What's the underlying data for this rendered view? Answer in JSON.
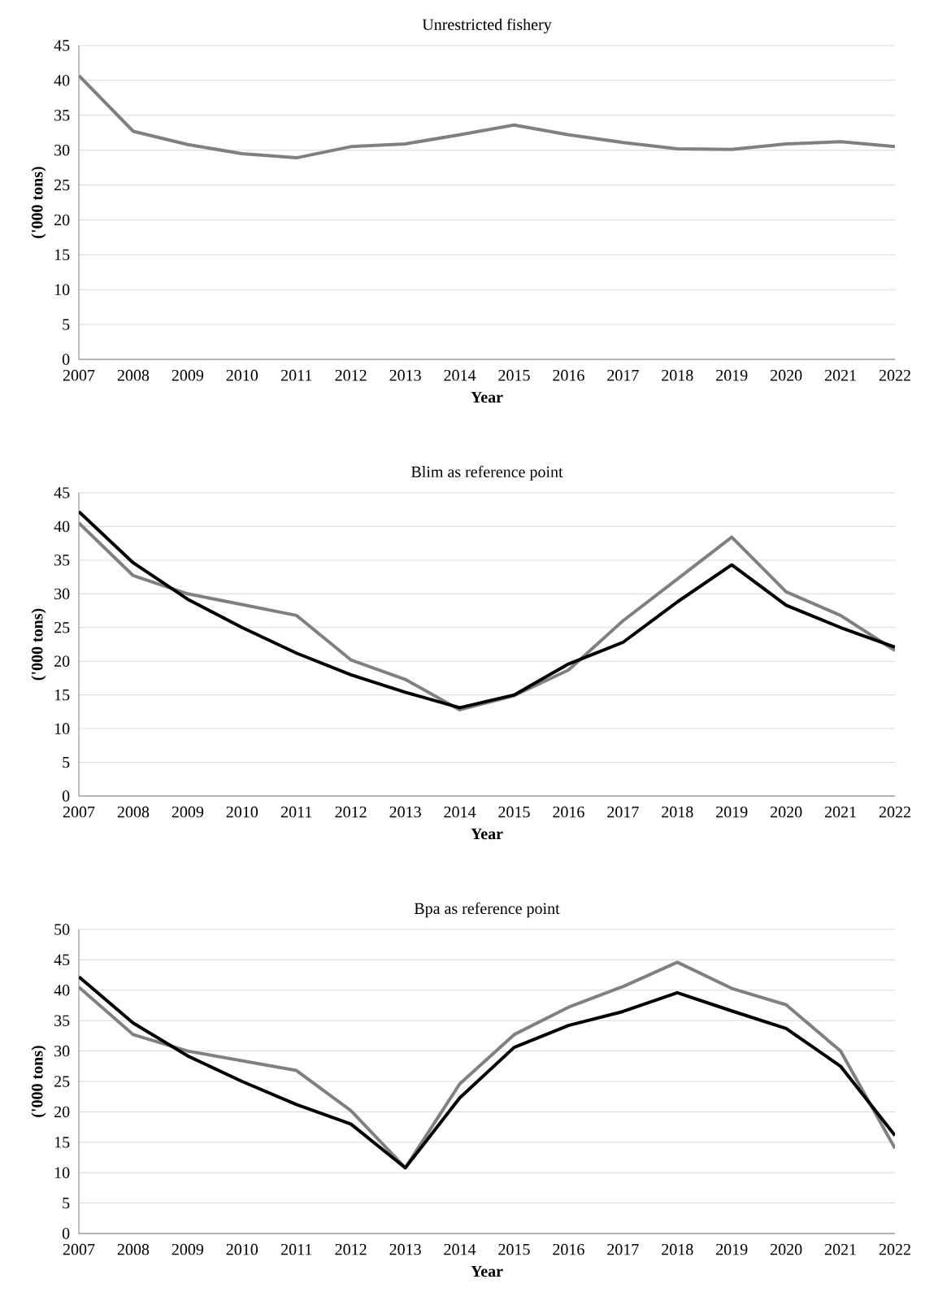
{
  "chart_data": [
    {
      "type": "line",
      "title": "Unrestricted fishery",
      "xlabel": "Year",
      "ylabel": "('000 tons)",
      "categories": [
        "2007",
        "2008",
        "2009",
        "2010",
        "2011",
        "2012",
        "2013",
        "2014",
        "2015",
        "2016",
        "2017",
        "2018",
        "2019",
        "2020",
        "2021",
        "2022"
      ],
      "ylim": [
        0,
        45
      ],
      "yticks": [
        0,
        5,
        10,
        15,
        20,
        25,
        30,
        35,
        40,
        45
      ],
      "grid": "y",
      "series": [
        {
          "color": "#808080",
          "values": [
            40.7,
            32.7,
            30.8,
            29.5,
            28.9,
            30.5,
            30.9,
            32.2,
            33.6,
            32.2,
            31.1,
            30.2,
            30.1,
            30.9,
            31.2,
            30.5
          ]
        }
      ]
    },
    {
      "type": "line",
      "title": "Blim as reference point",
      "xlabel": "Year",
      "ylabel": "('000 tons)",
      "categories": [
        "2007",
        "2008",
        "2009",
        "2010",
        "2011",
        "2012",
        "2013",
        "2014",
        "2015",
        "2016",
        "2017",
        "2018",
        "2019",
        "2020",
        "2021",
        "2022"
      ],
      "ylim": [
        0,
        45
      ],
      "yticks": [
        0,
        5,
        10,
        15,
        20,
        25,
        30,
        35,
        40,
        45
      ],
      "grid": "y",
      "series": [
        {
          "color": "#808080",
          "values": [
            40.5,
            32.7,
            30.0,
            28.4,
            26.8,
            20.2,
            17.3,
            12.8,
            14.9,
            18.7,
            26.0,
            32.2,
            38.4,
            30.3,
            26.8,
            21.6
          ]
        },
        {
          "color": "#000000",
          "values": [
            42.2,
            34.6,
            29.2,
            25.0,
            21.2,
            18.0,
            15.4,
            13.1,
            15.0,
            19.6,
            22.8,
            28.8,
            34.3,
            28.3,
            25.0,
            22.1
          ]
        }
      ]
    },
    {
      "type": "line",
      "title": "Bpa as reference point",
      "xlabel": "Year",
      "ylabel": "('000 tons)",
      "categories": [
        "2007",
        "2008",
        "2009",
        "2010",
        "2011",
        "2012",
        "2013",
        "2014",
        "2015",
        "2016",
        "2017",
        "2018",
        "2019",
        "2020",
        "2021",
        "2022"
      ],
      "ylim": [
        0,
        50
      ],
      "yticks": [
        0,
        5,
        10,
        15,
        20,
        25,
        30,
        35,
        40,
        45,
        50
      ],
      "grid": "y",
      "series": [
        {
          "color": "#808080",
          "values": [
            40.5,
            32.7,
            30.0,
            28.4,
            26.8,
            20.2,
            10.8,
            24.6,
            32.7,
            37.2,
            40.6,
            44.6,
            40.3,
            37.6,
            30.0,
            14.0
          ]
        },
        {
          "color": "#000000",
          "values": [
            42.2,
            34.6,
            29.2,
            25.0,
            21.2,
            18.0,
            10.8,
            22.3,
            30.6,
            34.2,
            36.5,
            39.6,
            36.6,
            33.7,
            27.5,
            16.1
          ]
        }
      ]
    }
  ]
}
